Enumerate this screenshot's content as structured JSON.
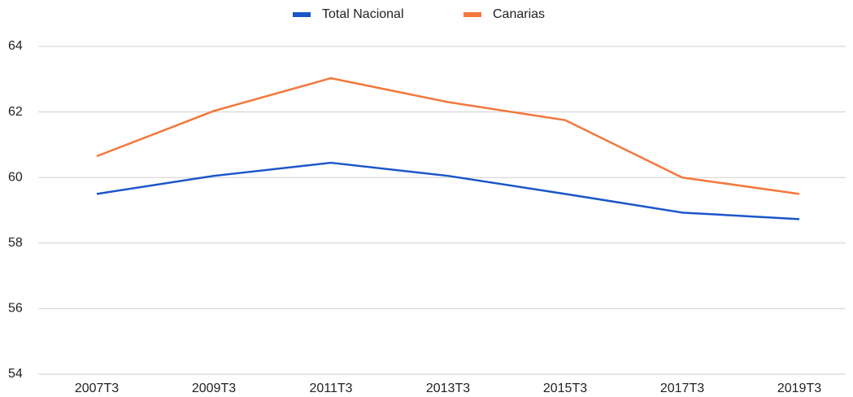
{
  "chart_data": {
    "type": "line",
    "categories": [
      "2007T3",
      "2009T3",
      "2011T3",
      "2013T3",
      "2015T3",
      "2017T3",
      "2019T3"
    ],
    "series": [
      {
        "name": "Total Nacional",
        "color": "#1a56c9",
        "values": [
          59.5,
          60.05,
          60.45,
          60.05,
          59.5,
          58.93,
          58.73
        ]
      },
      {
        "name": "Canarias",
        "color": "#f4773b",
        "values": [
          60.65,
          62.03,
          63.03,
          62.3,
          61.75,
          60.0,
          59.5
        ]
      }
    ],
    "ylim": [
      54,
      64
    ],
    "yticks": [
      54,
      56,
      58,
      60,
      62,
      64
    ],
    "grid": true,
    "legend": "top"
  }
}
